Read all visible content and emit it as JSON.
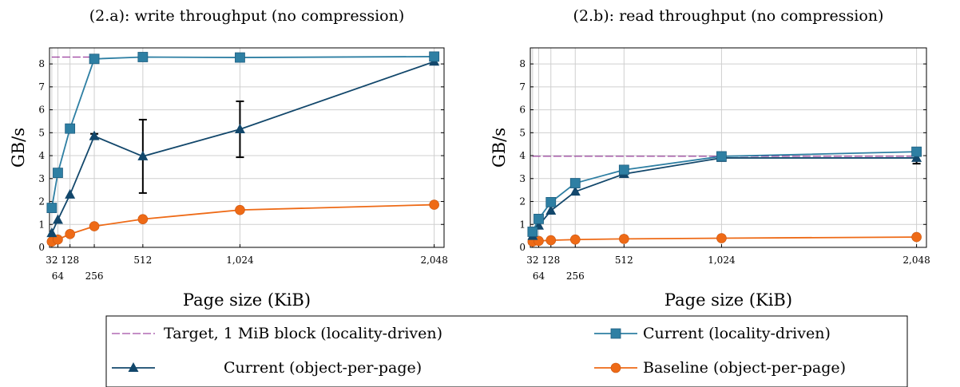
{
  "chart_data": [
    {
      "type": "line",
      "title": "(2.a): write throughput (no compression)",
      "xlabel": "Page size (KiB)",
      "ylabel": "GB/s",
      "xlim": [
        20,
        2100
      ],
      "ylim": [
        0,
        8.7
      ],
      "grid": true,
      "x_ticks_top": [
        "32",
        "128",
        "512",
        "1,024",
        "2,048"
      ],
      "x_ticks_top_values": [
        32,
        128,
        512,
        1024,
        2048
      ],
      "x_ticks_bottom": [
        "64",
        "256"
      ],
      "x_ticks_bottom_values": [
        64,
        256
      ],
      "y_ticks": [
        "0",
        "1",
        "2",
        "3",
        "4",
        "5",
        "6",
        "7",
        "8"
      ],
      "series": [
        {
          "key": "target",
          "x": [
            32,
            256
          ],
          "y": [
            8.3,
            8.3
          ]
        },
        {
          "key": "current_locality",
          "x": [
            32,
            64,
            128,
            256,
            512,
            1024,
            2048
          ],
          "y": [
            1.72,
            3.25,
            5.18,
            8.22,
            8.3,
            8.28,
            8.32
          ]
        },
        {
          "key": "current_object",
          "x": [
            32,
            64,
            128,
            256,
            512,
            1024,
            2048
          ],
          "y": [
            0.62,
            1.2,
            2.3,
            4.85,
            3.97,
            5.15,
            8.1
          ],
          "error": [
            0.05,
            0.05,
            0.05,
            0.1,
            1.6,
            1.22,
            0.1
          ]
        },
        {
          "key": "baseline",
          "x": [
            32,
            64,
            128,
            256,
            512,
            1024,
            2048
          ],
          "y": [
            0.25,
            0.34,
            0.58,
            0.92,
            1.23,
            1.63,
            1.86
          ]
        }
      ]
    },
    {
      "type": "line",
      "title": "(2.b): read throughput (no compression)",
      "xlabel": "Page size (KiB)",
      "ylabel": "GB/s",
      "xlim": [
        20,
        2100
      ],
      "ylim": [
        0,
        8.7
      ],
      "grid": true,
      "x_ticks_top": [
        "32",
        "128",
        "512",
        "1,024",
        "2,048"
      ],
      "x_ticks_top_values": [
        32,
        128,
        512,
        1024,
        2048
      ],
      "x_ticks_bottom": [
        "64",
        "256"
      ],
      "x_ticks_bottom_values": [
        64,
        256
      ],
      "y_ticks": [
        "0",
        "1",
        "2",
        "3",
        "4",
        "5",
        "6",
        "7",
        "8"
      ],
      "series": [
        {
          "key": "target",
          "x": [
            32,
            2048
          ],
          "y": [
            3.97,
            3.97
          ]
        },
        {
          "key": "current_locality",
          "x": [
            32,
            64,
            128,
            256,
            512,
            1024,
            2048
          ],
          "y": [
            0.68,
            1.24,
            1.97,
            2.8,
            3.38,
            3.97,
            4.17
          ]
        },
        {
          "key": "current_object",
          "x": [
            32,
            64,
            128,
            256,
            512,
            1024,
            2048
          ],
          "y": [
            0.5,
            0.95,
            1.6,
            2.43,
            3.2,
            3.9,
            3.9
          ],
          "error": [
            0.05,
            0.05,
            0.05,
            0.05,
            0.05,
            0.05,
            0.25
          ]
        },
        {
          "key": "baseline",
          "x": [
            32,
            64,
            128,
            256,
            512,
            1024,
            2048
          ],
          "y": [
            0.25,
            0.28,
            0.31,
            0.34,
            0.37,
            0.4,
            0.45
          ]
        }
      ]
    }
  ],
  "legend": {
    "items": [
      {
        "key": "target",
        "label": "Target, 1 MiB block (locality-driven)",
        "color": "#8b1f8f",
        "marker": "none",
        "dash": true
      },
      {
        "key": "current_locality",
        "label": "Current (locality-driven)",
        "color": "#2e7fa3",
        "marker": "square"
      },
      {
        "key": "current_object",
        "label": "Current (object-per-page)",
        "color": "#12476b",
        "marker": "triangle"
      },
      {
        "key": "baseline",
        "label": "Baseline (object-per-page)",
        "color": "#ee6a16",
        "marker": "circle"
      }
    ]
  }
}
